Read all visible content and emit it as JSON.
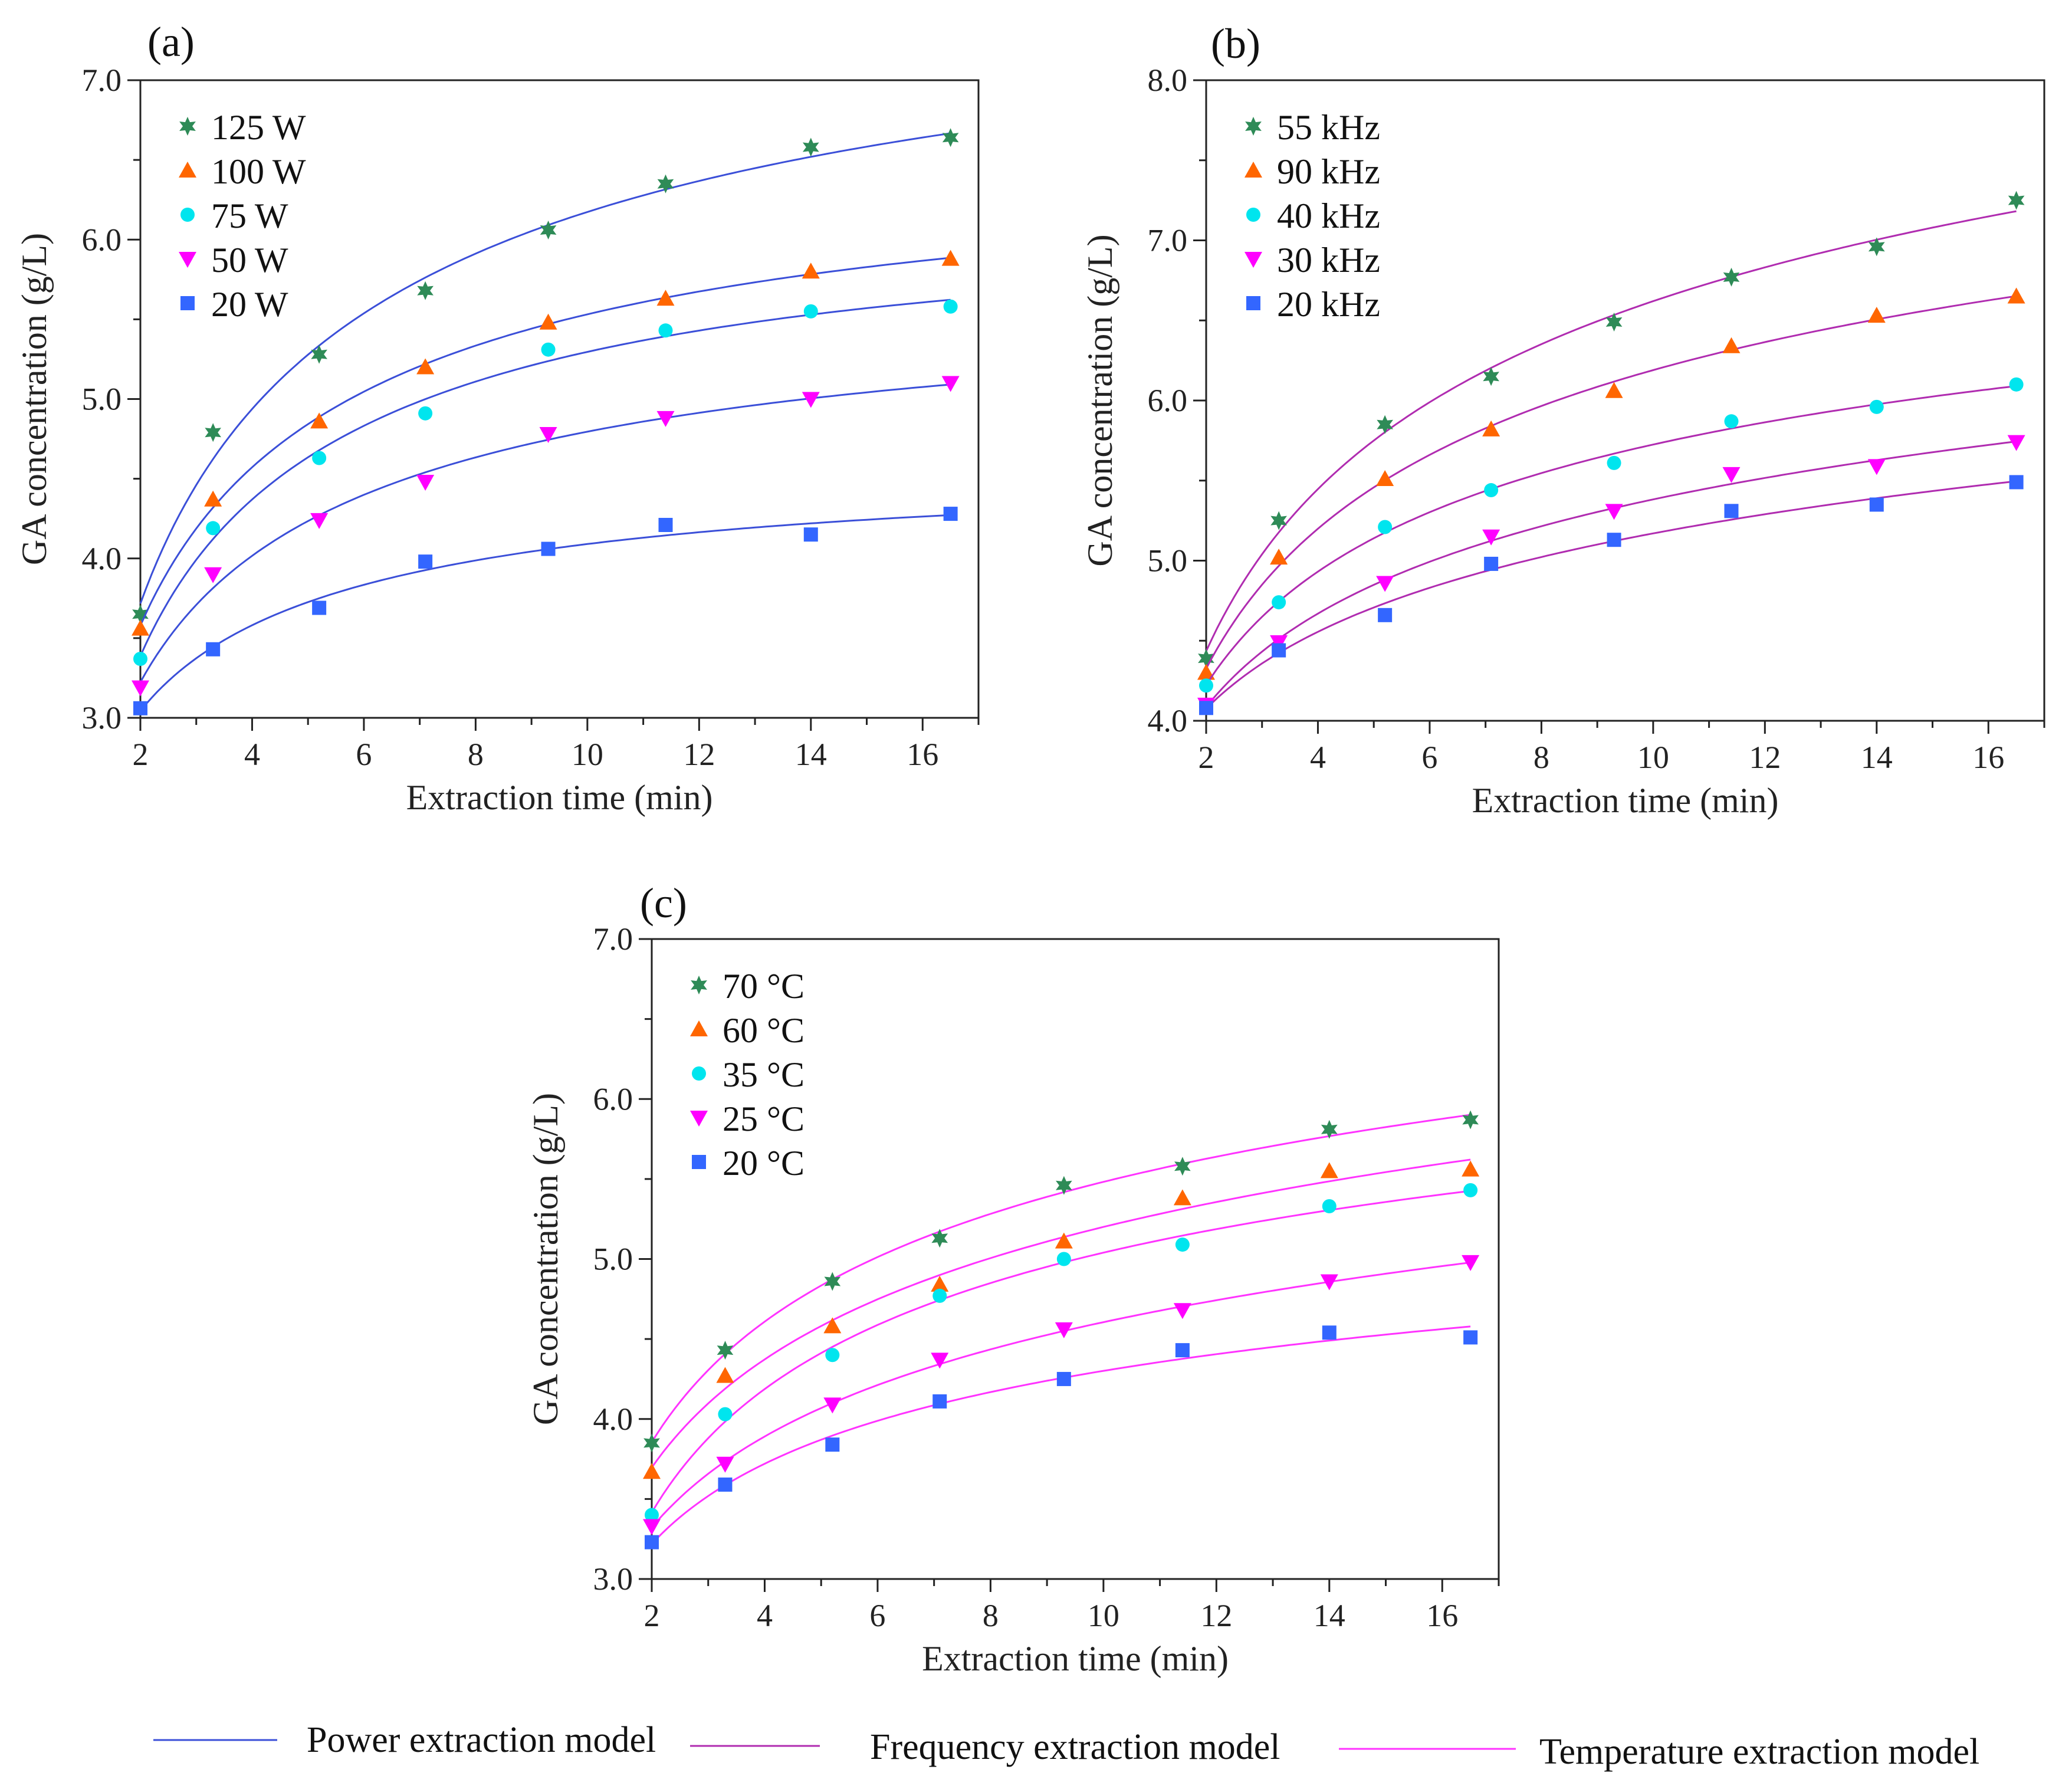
{
  "chart_data": [
    {
      "type": "scatter",
      "panel_label": "(a)",
      "xlabel": "Extraction time (min)",
      "ylabel": "GA concentration (g/L)",
      "xlim": [
        2,
        17
      ],
      "ylim": [
        3.0,
        7.0
      ],
      "xticks": [
        "2",
        "4",
        "6",
        "8",
        "10",
        "12",
        "14",
        "16"
      ],
      "yticks": [
        "3.0",
        "4.0",
        "5.0",
        "6.0",
        "7.0"
      ],
      "fit_color": "#3b4fd8",
      "x": [
        2.0,
        3.3,
        5.2,
        7.1,
        9.3,
        11.4,
        14.0,
        16.5
      ],
      "series": [
        {
          "name": "125 W",
          "marker": "star",
          "color": "#2e8b57",
          "values": [
            3.65,
            4.79,
            5.28,
            5.68,
            6.06,
            6.35,
            6.58,
            6.64
          ]
        },
        {
          "name": "100 W",
          "marker": "triangle-up",
          "color": "#ff6600",
          "values": [
            3.56,
            4.37,
            4.86,
            5.2,
            5.48,
            5.63,
            5.8,
            5.88
          ]
        },
        {
          "name": "75 W",
          "marker": "circle",
          "color": "#00e5ee",
          "values": [
            3.37,
            4.19,
            4.63,
            4.91,
            5.31,
            5.43,
            5.55,
            5.58
          ]
        },
        {
          "name": "50 W",
          "marker": "triangle-down",
          "color": "#ff00ff",
          "values": [
            3.19,
            3.9,
            4.24,
            4.48,
            4.78,
            4.88,
            5.0,
            5.1
          ]
        },
        {
          "name": "20 W",
          "marker": "square",
          "color": "#3366ff",
          "values": [
            3.06,
            3.43,
            3.69,
            3.98,
            4.06,
            4.21,
            4.15,
            4.28
          ]
        }
      ]
    },
    {
      "type": "scatter",
      "panel_label": "(b)",
      "xlabel": "Extraction time (min)",
      "ylabel": "GA concentration (g/L)",
      "xlim": [
        2,
        17
      ],
      "ylim": [
        4.0,
        8.0
      ],
      "xticks": [
        "2",
        "4",
        "6",
        "8",
        "10",
        "12",
        "14",
        "16"
      ],
      "yticks": [
        "4.0",
        "5.0",
        "6.0",
        "7.0",
        "8.0"
      ],
      "fit_color": "#b02cb0",
      "x": [
        2.0,
        3.3,
        5.2,
        7.1,
        9.3,
        11.4,
        14.0,
        16.5
      ],
      "series": [
        {
          "name": "55 kHz",
          "marker": "star",
          "color": "#2e8b57",
          "values": [
            4.39,
            5.25,
            5.85,
            6.15,
            6.49,
            6.77,
            6.96,
            7.25
          ]
        },
        {
          "name": "90 kHz",
          "marker": "triangle-up",
          "color": "#ff6600",
          "values": [
            4.3,
            5.02,
            5.51,
            5.82,
            6.06,
            6.34,
            6.53,
            6.65
          ]
        },
        {
          "name": "40 kHz",
          "marker": "circle",
          "color": "#00e5ee",
          "values": [
            4.22,
            4.74,
            5.21,
            5.44,
            5.61,
            5.87,
            5.96,
            6.1
          ]
        },
        {
          "name": "30 kHz",
          "marker": "triangle-down",
          "color": "#ff00ff",
          "values": [
            4.1,
            4.49,
            4.86,
            5.15,
            5.31,
            5.54,
            5.59,
            5.74
          ]
        },
        {
          "name": "20 kHz",
          "marker": "square",
          "color": "#3366ff",
          "values": [
            4.08,
            4.44,
            4.66,
            4.98,
            5.13,
            5.31,
            5.35,
            5.49
          ]
        }
      ]
    },
    {
      "type": "scatter",
      "panel_label": "(c)",
      "xlabel": "Extraction time (min)",
      "ylabel": "GA concentration (g/L)",
      "xlim": [
        2,
        17
      ],
      "ylim": [
        3.0,
        7.0
      ],
      "xticks": [
        "2",
        "4",
        "6",
        "8",
        "10",
        "12",
        "14",
        "16"
      ],
      "yticks": [
        "3.0",
        "4.0",
        "5.0",
        "6.0",
        "7.0"
      ],
      "fit_color": "#ff33ff",
      "x": [
        2.0,
        3.3,
        5.2,
        7.1,
        9.3,
        11.4,
        14.0,
        16.5
      ],
      "series": [
        {
          "name": "70 °C",
          "marker": "star",
          "color": "#2e8b57",
          "values": [
            3.85,
            4.43,
            4.86,
            5.13,
            5.46,
            5.58,
            5.81,
            5.87
          ]
        },
        {
          "name": "60 °C",
          "marker": "triangle-up",
          "color": "#ff6600",
          "values": [
            3.67,
            4.27,
            4.58,
            4.84,
            5.11,
            5.38,
            5.55,
            5.56
          ]
        },
        {
          "name": "35 °C",
          "marker": "circle",
          "color": "#00e5ee",
          "values": [
            3.4,
            4.03,
            4.4,
            4.77,
            5.0,
            5.09,
            5.33,
            5.43
          ]
        },
        {
          "name": "25 °C",
          "marker": "triangle-down",
          "color": "#ff00ff",
          "values": [
            3.33,
            3.72,
            4.09,
            4.37,
            4.56,
            4.68,
            4.86,
            4.98
          ]
        },
        {
          "name": "20 °C",
          "marker": "square",
          "color": "#3366ff",
          "values": [
            3.23,
            3.59,
            3.84,
            4.11,
            4.25,
            4.43,
            4.54,
            4.51
          ]
        }
      ]
    }
  ],
  "model_legend": [
    {
      "label": "Power extraction model",
      "color": "#3b4fd8"
    },
    {
      "label": "Frequency extraction model",
      "color": "#b02cb0"
    },
    {
      "label": "Temperature extraction model",
      "color": "#ff33ff"
    }
  ]
}
